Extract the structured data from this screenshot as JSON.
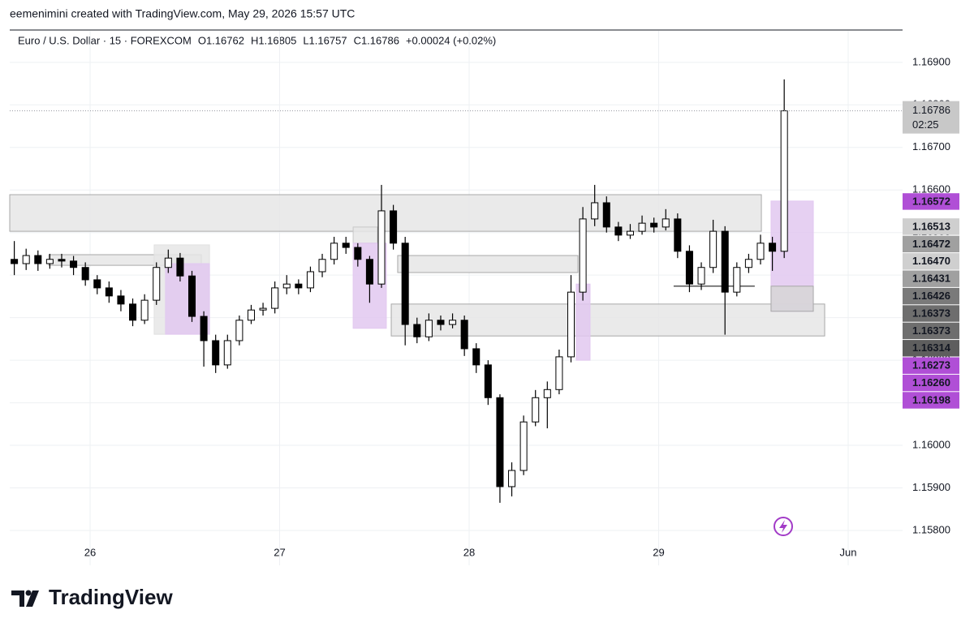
{
  "credit": "eemenimini created with TradingView.com, May 29, 2026 15:57 UTC",
  "brand": "TradingView",
  "chart_data": {
    "type": "candlestick",
    "title": "Euro / U.S. Dollar · 15 · FOREXCOM",
    "ohlc_legend": [
      "O1.16762",
      "H1.16805",
      "L1.16757",
      "C1.16786",
      "+0.00024 (+0.02%)"
    ],
    "x": [
      -0.4,
      -0.3375,
      -0.275,
      -0.2125,
      -0.15,
      -0.0875,
      -0.025,
      0.0375,
      0.1,
      0.1625,
      0.225,
      0.2875,
      0.35,
      0.4125,
      0.475,
      0.5375,
      0.6,
      0.6625,
      0.725,
      0.7875,
      0.85,
      0.9125,
      0.975,
      1.0375,
      1.1,
      1.1625,
      1.225,
      1.2875,
      1.35,
      1.4125,
      1.475,
      1.5375,
      1.6,
      1.6625,
      1.725,
      1.7875,
      1.85,
      1.9125,
      1.975,
      2.0375,
      2.1,
      2.1625,
      2.225,
      2.2875,
      2.35,
      2.4125,
      2.475,
      2.5375,
      2.6,
      2.6625,
      2.725,
      2.7875,
      2.85,
      2.9125,
      2.975,
      3.0375,
      3.1,
      3.1625,
      3.225,
      3.2875,
      3.35,
      3.4125,
      3.475,
      3.5375,
      3.6,
      3.6625
    ],
    "open": [
      1.16437,
      1.16427,
      1.16446,
      1.16427,
      1.16437,
      1.16433,
      1.16418,
      1.16389,
      1.1637,
      1.16351,
      1.16332,
      1.16294,
      1.16341,
      1.16418,
      1.1644,
      1.16398,
      1.16303,
      1.16246,
      1.16189,
      1.16246,
      1.16294,
      1.16318,
      1.16322,
      1.1637,
      1.16379,
      1.1637,
      1.16408,
      1.16437,
      1.16475,
      1.16465,
      1.16437,
      1.16379,
      1.16551,
      1.16475,
      1.16284,
      1.16255,
      1.16294,
      1.16284,
      1.16294,
      1.16227,
      1.16189,
      1.16112,
      1.15903,
      1.15941,
      1.16055,
      1.16112,
      1.16131,
      1.16208,
      1.1636,
      1.16532,
      1.1657,
      1.16513,
      1.16494,
      1.16503,
      1.16522,
      1.16513,
      1.16532,
      1.16456,
      1.16379,
      1.16418,
      1.16503,
      1.1636,
      1.16418,
      1.16437,
      1.16475,
      1.16456
    ],
    "high": [
      1.1648,
      1.16462,
      1.16458,
      1.1645,
      1.1645,
      1.16445,
      1.1643,
      1.164,
      1.16385,
      1.16365,
      1.16345,
      1.16355,
      1.1643,
      1.1646,
      1.16452,
      1.1641,
      1.16315,
      1.1626,
      1.1626,
      1.16305,
      1.1633,
      1.16335,
      1.16385,
      1.164,
      1.1639,
      1.1642,
      1.1645,
      1.1649,
      1.1649,
      1.16475,
      1.16445,
      1.16612,
      1.16565,
      1.1649,
      1.163,
      1.1631,
      1.16305,
      1.1631,
      1.16305,
      1.1624,
      1.162,
      1.1612,
      1.1596,
      1.1607,
      1.1613,
      1.1615,
      1.16225,
      1.164,
      1.1656,
      1.16612,
      1.16585,
      1.16525,
      1.1652,
      1.1654,
      1.16535,
      1.16555,
      1.16545,
      1.1647,
      1.1643,
      1.1653,
      1.16515,
      1.1643,
      1.1645,
      1.16495,
      1.1649,
      1.1686
    ],
    "low": [
      1.164,
      1.16412,
      1.1641,
      1.16415,
      1.16418,
      1.164,
      1.16375,
      1.16355,
      1.16335,
      1.16315,
      1.1628,
      1.16285,
      1.1633,
      1.16405,
      1.16385,
      1.1629,
      1.16185,
      1.1617,
      1.1618,
      1.16235,
      1.16285,
      1.16305,
      1.1631,
      1.16355,
      1.16355,
      1.1636,
      1.16395,
      1.16425,
      1.1645,
      1.1642,
      1.16335,
      1.1637,
      1.1646,
      1.16235,
      1.1624,
      1.16245,
      1.1627,
      1.16275,
      1.1621,
      1.1617,
      1.16095,
      1.15865,
      1.1588,
      1.1593,
      1.16045,
      1.1604,
      1.1612,
      1.16195,
      1.1634,
      1.16515,
      1.165,
      1.1648,
      1.16485,
      1.16495,
      1.165,
      1.16505,
      1.1644,
      1.1636,
      1.16365,
      1.16405,
      1.1626,
      1.1635,
      1.16405,
      1.16425,
      1.1641,
      1.1644
    ],
    "close": [
      1.16427,
      1.16446,
      1.16427,
      1.16437,
      1.16433,
      1.16418,
      1.16389,
      1.1637,
      1.16351,
      1.16332,
      1.16294,
      1.16341,
      1.16418,
      1.1644,
      1.16398,
      1.16303,
      1.16246,
      1.16189,
      1.16246,
      1.16294,
      1.16318,
      1.16322,
      1.1637,
      1.16379,
      1.1637,
      1.16408,
      1.16437,
      1.16475,
      1.16465,
      1.16437,
      1.16379,
      1.16551,
      1.16475,
      1.16284,
      1.16255,
      1.16294,
      1.16284,
      1.16294,
      1.16227,
      1.16189,
      1.16112,
      1.15903,
      1.15941,
      1.16055,
      1.16112,
      1.16131,
      1.16208,
      1.1636,
      1.16532,
      1.1657,
      1.16513,
      1.16494,
      1.16503,
      1.16522,
      1.16513,
      1.16532,
      1.16456,
      1.16379,
      1.16418,
      1.16503,
      1.1636,
      1.16418,
      1.16437,
      1.16475,
      1.16456,
      1.16786
    ],
    "up_color": "#ffffff",
    "down_color": "#000000",
    "wick_color": "#000000",
    "xlim": [
      -0.424,
      4.287
    ],
    "xticks": [
      {
        "value": 0,
        "label": "26"
      },
      {
        "value": 1,
        "label": "27"
      },
      {
        "value": 2,
        "label": "28"
      },
      {
        "value": 3,
        "label": "29"
      },
      {
        "value": 4,
        "label": "Jun"
      }
    ],
    "ylim": [
      1.15718,
      1.16974
    ],
    "yticks": [
      {
        "value": 1.158,
        "label": "1.15800"
      },
      {
        "value": 1.159,
        "label": "1.15900"
      },
      {
        "value": 1.16,
        "label": "1.16000"
      },
      {
        "value": 1.161,
        "label": "1.16100"
      },
      {
        "value": 1.162,
        "label": "1.16200"
      },
      {
        "value": 1.163,
        "label": "1.16300"
      },
      {
        "value": 1.164,
        "label": "1.16400"
      },
      {
        "value": 1.165,
        "label": "1.16500"
      },
      {
        "value": 1.166,
        "label": "1.16600"
      },
      {
        "value": 1.167,
        "label": "1.16700"
      },
      {
        "value": 1.168,
        "label": "1.16800"
      },
      {
        "value": 1.169,
        "label": "1.16900"
      }
    ],
    "grid": true,
    "zones": [
      {
        "x": [
          -0.424,
          3.542
        ],
        "y": [
          1.16503,
          1.16589
        ],
        "color": "#e6e6e6",
        "border": "#a8a8a8"
      },
      {
        "x": [
          -0.218,
          0.587
        ],
        "y": [
          1.16423,
          1.16448
        ],
        "color": "#e6e6e6",
        "border": "#a8a8a8"
      },
      {
        "x": [
          0.338,
          0.63
        ],
        "y": [
          1.16261,
          1.16471
        ],
        "color": "#e6e6e6",
        "border": "#e0e0e0"
      },
      {
        "x": [
          0.398,
          0.63
        ],
        "y": [
          1.16261,
          1.16427
        ],
        "color": "#e2c8f0",
        "border": "#e2c8f0"
      },
      {
        "x": [
          1.388,
          1.516
        ],
        "y": [
          1.16475,
          1.16513
        ],
        "color": "#e6e6e6",
        "border": "#c8c8c8"
      },
      {
        "x": [
          1.388,
          1.563
        ],
        "y": [
          1.16275,
          1.16475
        ],
        "color": "#e2c8f0",
        "border": "#e2c8f0"
      },
      {
        "x": [
          1.623,
          2.574
        ],
        "y": [
          1.16406,
          1.16446
        ],
        "color": "#e6e6e6",
        "border": "#a8a8a8"
      },
      {
        "x": [
          1.589,
          3.876
        ],
        "y": [
          1.16257,
          1.16332
        ],
        "color": "#e6e6e6",
        "border": "#a8a8a8"
      },
      {
        "x": [
          2.565,
          2.638
        ],
        "y": [
          1.162,
          1.16379
        ],
        "color": "#e2c8f0",
        "border": "#e2c8f0"
      },
      {
        "x": [
          3.593,
          3.816
        ],
        "y": [
          1.16315,
          1.16574
        ],
        "color": "#e2c8f0",
        "border": "#e2c8f0"
      },
      {
        "x": [
          3.593,
          3.816
        ],
        "y": [
          1.16315,
          1.16374
        ],
        "color": "#d6d6d6",
        "border": "#a8a8a8"
      }
    ],
    "lines": [
      {
        "x": [
          3.079,
          3.507
        ],
        "y": 1.16374,
        "color": "#555555"
      }
    ],
    "last_price": {
      "value": 1.16786,
      "label": "1.16786",
      "countdown": "02:25",
      "color": "#c8c8c8",
      "text_color": "#000000"
    },
    "price_labels": [
      {
        "value": 1.16572,
        "label": "1.16572",
        "color": "#b04fd6",
        "text_color": "#ffffff"
      },
      {
        "value": 1.16513,
        "label": "1.16513",
        "color": "#cfcfcf",
        "text_color": "#000000"
      },
      {
        "value": 1.16472,
        "label": "1.16472",
        "color": "#a0a0a0",
        "text_color": "#000000"
      },
      {
        "value": 1.1647,
        "label": "1.16470",
        "color": "#cfcfcf",
        "text_color": "#000000"
      },
      {
        "value": 1.16431,
        "label": "1.16431",
        "color": "#a0a0a0",
        "text_color": "#000000"
      },
      {
        "value": 1.16426,
        "label": "1.16426",
        "color": "#7a7a7a",
        "text_color": "#ffffff"
      },
      {
        "value": 1.16373,
        "label": "1.16373",
        "color": "#6e6e6e",
        "text_color": "#ffffff"
      },
      {
        "value": 1.16373,
        "label": "1.16373",
        "color": "#6e6e6e",
        "text_color": "#ffffff"
      },
      {
        "value": 1.16314,
        "label": "1.16314",
        "color": "#5e5e5e",
        "text_color": "#ffffff"
      },
      {
        "value": 1.16273,
        "label": "1.16273",
        "color": "#b04fd6",
        "text_color": "#ffffff"
      },
      {
        "value": 1.1626,
        "label": "1.16260",
        "color": "#b04fd6",
        "text_color": "#ffffff"
      },
      {
        "value": 1.16198,
        "label": "1.16198",
        "color": "#b04fd6",
        "text_color": "#ffffff"
      }
    ]
  }
}
